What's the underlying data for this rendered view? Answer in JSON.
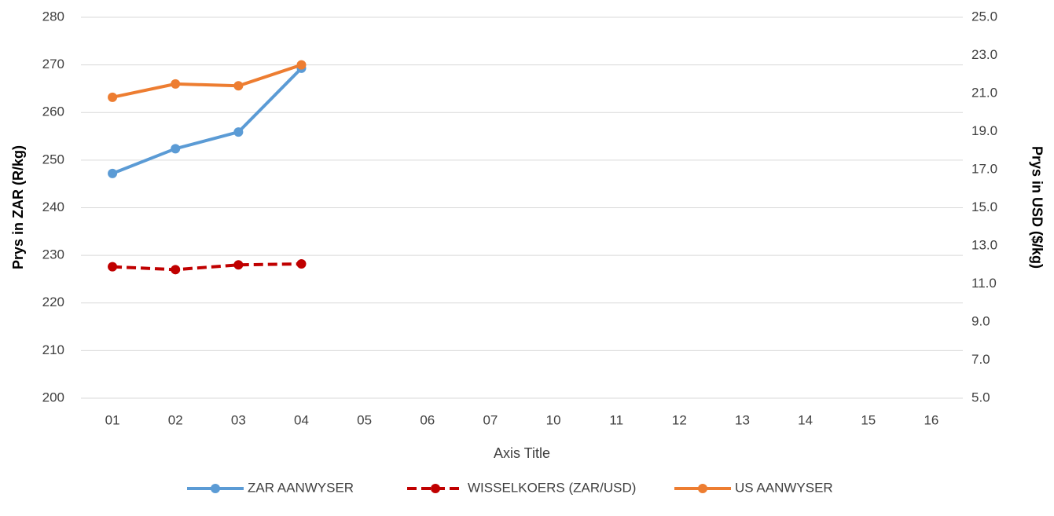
{
  "chart_data": {
    "type": "line",
    "x_label": "Axis Title",
    "y_label": "Prys in ZAR (R/kg)",
    "y2_label": "Prys in USD ($/kg)",
    "categories": [
      "01",
      "02",
      "03",
      "04",
      "05",
      "06",
      "07",
      "10",
      "11",
      "12",
      "13",
      "14",
      "15",
      "16"
    ],
    "series": [
      {
        "name": "ZAR AANWYSER",
        "color": "#5b9bd5",
        "dashed": false,
        "axis": "y",
        "values": [
          247.2,
          252.4,
          255.9,
          269.3,
          null,
          null,
          null,
          null,
          null,
          null,
          null,
          null,
          null,
          null
        ]
      },
      {
        "name": "WISSELKOERS (ZAR/USD)",
        "color": "#c00000",
        "dashed": true,
        "axis": "y2",
        "values": [
          11.9,
          11.75,
          12.0,
          12.05,
          null,
          null,
          null,
          null,
          null,
          null,
          null,
          null,
          null,
          null
        ]
      },
      {
        "name": "US AANWYSER",
        "color": "#ed7d31",
        "dashed": false,
        "axis": "y2",
        "values": [
          20.8,
          21.5,
          21.4,
          22.5,
          null,
          null,
          null,
          null,
          null,
          null,
          null,
          null,
          null,
          null
        ]
      }
    ],
    "ylim": [
      200,
      280
    ],
    "yticks": [
      200,
      210,
      220,
      230,
      240,
      250,
      260,
      270,
      280
    ],
    "y2lim": [
      5,
      25
    ],
    "y2ticks": [
      {
        "value": 5,
        "label": "5.0"
      },
      {
        "value": 7,
        "label": "7.0"
      },
      {
        "value": 9,
        "label": "9.0"
      },
      {
        "value": 11,
        "label": "11.0"
      },
      {
        "value": 13,
        "label": "13.0"
      },
      {
        "value": 15,
        "label": "15.0"
      },
      {
        "value": 17,
        "label": "17.0"
      },
      {
        "value": 19,
        "label": "19.0"
      },
      {
        "value": 21,
        "label": "21.0"
      },
      {
        "value": 23,
        "label": "23.0"
      },
      {
        "value": 25,
        "label": "25.0"
      }
    ],
    "grid": true,
    "legend": "bottom"
  }
}
